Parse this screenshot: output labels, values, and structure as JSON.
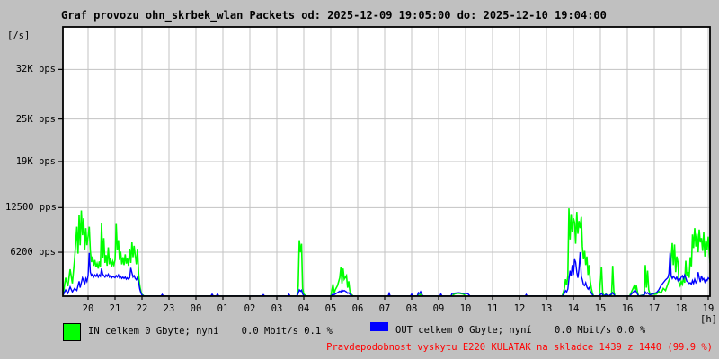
{
  "title": "Graf provozu ohn_skrbek_wlan Packets od: 2025-12-09 19:05:00 do: 2025-12-10 19:04:00",
  "unit_label": "[/s]",
  "hour_unit_label": "[h]",
  "colors": {
    "background": "#c0c0c0",
    "plot_background": "#ffffff",
    "grid": "#c3c3c3",
    "frame": "#000000",
    "in_series": "#00ff00",
    "out_series": "#0000ff",
    "warning_text": "#ff0000",
    "text": "#000000"
  },
  "legend": {
    "in_label": "IN celkem 0 Gbyte; nyní    0.0 Mbit/s 0.1 %",
    "out_label": "OUT celkem 0 Gbyte; nyní    0.0 Mbit/s 0.0 %"
  },
  "warning_text": "Pravdepodobnost vyskytu E220 KULATAK na skladce 1439 z 1440 (99.9 %)",
  "y_axis": {
    "unit": "packets per second",
    "ticks": [
      {
        "value": 32000,
        "label": "32K pps"
      },
      {
        "value": 25000,
        "label": "25K pps"
      },
      {
        "value": 19000,
        "label": "19K pps"
      },
      {
        "value": 12500,
        "label": "12500 pps"
      },
      {
        "value": 6200,
        "label": "6200 pps"
      }
    ]
  },
  "x_axis": {
    "unit": "hour of day",
    "hours": [
      "20",
      "21",
      "22",
      "23",
      "00",
      "01",
      "02",
      "03",
      "04",
      "05",
      "06",
      "07",
      "08",
      "09",
      "10",
      "11",
      "12",
      "13",
      "14",
      "15",
      "16",
      "17",
      "18",
      "19"
    ]
  },
  "chart_data": {
    "type": "line",
    "title": "Graf provozu ohn_skrbek_wlan Packets od: 2025-12-09 19:05:00 do: 2025-12-10 19:04:00",
    "xlabel": "[h]",
    "ylabel": "[/s]",
    "x_range_hours": [
      19.083,
      43.067
    ],
    "ylim": [
      0,
      38000
    ],
    "grid": true,
    "legend_position": "bottom",
    "series_names": [
      "IN",
      "OUT"
    ],
    "series_colors": [
      "#00ff00",
      "#0000ff"
    ],
    "points_format": "[hour_decimal (24+ = next day), IN_pps, OUT_pps]",
    "points": [
      [
        19.083,
        400,
        200
      ],
      [
        19.167,
        2600,
        900
      ],
      [
        19.25,
        1400,
        400
      ],
      [
        19.333,
        3800,
        1300
      ],
      [
        19.417,
        1800,
        600
      ],
      [
        19.5,
        5200,
        1100
      ],
      [
        19.583,
        9800,
        800
      ],
      [
        19.625,
        6000,
        1500
      ],
      [
        19.667,
        11400,
        2100
      ],
      [
        19.708,
        7200,
        1200
      ],
      [
        19.75,
        12100,
        1900
      ],
      [
        19.792,
        8600,
        2600
      ],
      [
        19.833,
        11000,
        2200
      ],
      [
        19.875,
        6600,
        1700
      ],
      [
        19.917,
        9600,
        2500
      ],
      [
        19.958,
        7200,
        2100
      ],
      [
        20.0,
        8400,
        2900
      ],
      [
        20.042,
        9800,
        6100
      ],
      [
        20.083,
        6400,
        3400
      ],
      [
        20.125,
        4800,
        2900
      ],
      [
        20.167,
        5600,
        3100
      ],
      [
        20.208,
        4300,
        2700
      ],
      [
        20.25,
        5100,
        3000
      ],
      [
        20.292,
        4100,
        2800
      ],
      [
        20.333,
        4600,
        3100
      ],
      [
        20.375,
        3900,
        2700
      ],
      [
        20.417,
        4900,
        3000
      ],
      [
        20.458,
        4200,
        2800
      ],
      [
        20.5,
        10300,
        3900
      ],
      [
        20.542,
        5400,
        3100
      ],
      [
        20.583,
        8200,
        2900
      ],
      [
        20.625,
        4700,
        2700
      ],
      [
        20.667,
        5800,
        3000
      ],
      [
        20.708,
        4300,
        2800
      ],
      [
        20.75,
        6900,
        3100
      ],
      [
        20.792,
        4500,
        2700
      ],
      [
        20.833,
        5300,
        2900
      ],
      [
        20.875,
        4200,
        2600
      ],
      [
        20.917,
        4900,
        2800
      ],
      [
        20.958,
        4400,
        2700
      ],
      [
        21.0,
        5100,
        2600
      ],
      [
        21.042,
        10200,
        2900
      ],
      [
        21.083,
        6500,
        2700
      ],
      [
        21.125,
        7900,
        3000
      ],
      [
        21.167,
        5100,
        2600
      ],
      [
        21.208,
        6300,
        2800
      ],
      [
        21.25,
        4500,
        2500
      ],
      [
        21.292,
        5500,
        2700
      ],
      [
        21.333,
        4400,
        2500
      ],
      [
        21.375,
        5900,
        2700
      ],
      [
        21.417,
        4600,
        2400
      ],
      [
        21.458,
        5300,
        2600
      ],
      [
        21.5,
        4300,
        2400
      ],
      [
        21.542,
        6700,
        2600
      ],
      [
        21.583,
        4700,
        4000
      ],
      [
        21.625,
        7600,
        3300
      ],
      [
        21.667,
        5500,
        2700
      ],
      [
        21.708,
        7100,
        2900
      ],
      [
        21.75,
        5700,
        2500
      ],
      [
        21.792,
        4500,
        2300
      ],
      [
        21.833,
        6700,
        2700
      ],
      [
        21.875,
        3100,
        1900
      ],
      [
        21.917,
        1500,
        1000
      ],
      [
        21.958,
        700,
        500
      ],
      [
        22.0,
        250,
        150
      ],
      [
        22.083,
        0,
        0
      ],
      [
        22.7,
        0,
        0
      ],
      [
        22.75,
        100,
        250
      ],
      [
        22.8,
        0,
        0
      ],
      [
        23.5,
        0,
        0
      ],
      [
        24.55,
        0,
        0
      ],
      [
        24.6,
        0,
        280
      ],
      [
        24.65,
        0,
        0
      ],
      [
        24.75,
        0,
        0
      ],
      [
        24.8,
        100,
        300
      ],
      [
        24.85,
        0,
        0
      ],
      [
        25.5,
        0,
        0
      ],
      [
        26.45,
        0,
        0
      ],
      [
        26.5,
        0,
        220
      ],
      [
        26.55,
        0,
        0
      ],
      [
        27.4,
        0,
        0
      ],
      [
        27.45,
        0,
        260
      ],
      [
        27.5,
        0,
        0
      ],
      [
        27.75,
        0,
        0
      ],
      [
        27.792,
        1400,
        400
      ],
      [
        27.833,
        7900,
        900
      ],
      [
        27.875,
        6200,
        700
      ],
      [
        27.917,
        7400,
        850
      ],
      [
        27.958,
        1100,
        300
      ],
      [
        28.0,
        300,
        100
      ],
      [
        28.083,
        0,
        0
      ],
      [
        28.6,
        0,
        0
      ],
      [
        29.0,
        0,
        0
      ],
      [
        29.083,
        1700,
        300
      ],
      [
        29.125,
        400,
        200
      ],
      [
        29.167,
        900,
        300
      ],
      [
        29.25,
        1500,
        500
      ],
      [
        29.333,
        2600,
        700
      ],
      [
        29.375,
        4100,
        600
      ],
      [
        29.417,
        1800,
        900
      ],
      [
        29.458,
        3900,
        700
      ],
      [
        29.5,
        2400,
        800
      ],
      [
        29.583,
        2900,
        600
      ],
      [
        29.625,
        1200,
        400
      ],
      [
        29.667,
        2100,
        500
      ],
      [
        29.708,
        800,
        300
      ],
      [
        29.75,
        300,
        150
      ],
      [
        29.833,
        0,
        0
      ],
      [
        30.5,
        0,
        0
      ],
      [
        31.125,
        0,
        0
      ],
      [
        31.167,
        100,
        420
      ],
      [
        31.208,
        0,
        0
      ],
      [
        31.958,
        0,
        0
      ],
      [
        32.0,
        0,
        300
      ],
      [
        32.042,
        0,
        0
      ],
      [
        32.208,
        0,
        0
      ],
      [
        32.25,
        200,
        500
      ],
      [
        32.292,
        0,
        350
      ],
      [
        32.333,
        250,
        650
      ],
      [
        32.375,
        0,
        300
      ],
      [
        32.417,
        0,
        0
      ],
      [
        33.042,
        0,
        0
      ],
      [
        33.083,
        0,
        320
      ],
      [
        33.125,
        0,
        0
      ],
      [
        33.458,
        0,
        0
      ],
      [
        33.5,
        0,
        380
      ],
      [
        33.583,
        300,
        420
      ],
      [
        33.667,
        380,
        450
      ],
      [
        33.75,
        420,
        480
      ],
      [
        33.833,
        350,
        430
      ],
      [
        33.917,
        300,
        400
      ],
      [
        34.0,
        0,
        380
      ],
      [
        34.083,
        0,
        350
      ],
      [
        34.167,
        0,
        0
      ],
      [
        35.0,
        0,
        0
      ],
      [
        36.208,
        0,
        0
      ],
      [
        36.25,
        0,
        240
      ],
      [
        36.292,
        0,
        0
      ],
      [
        37.0,
        0,
        0
      ],
      [
        37.583,
        0,
        0
      ],
      [
        37.667,
        1100,
        400
      ],
      [
        37.708,
        2400,
        800
      ],
      [
        37.75,
        1600,
        600
      ],
      [
        37.792,
        2800,
        1000
      ],
      [
        37.833,
        12400,
        2400
      ],
      [
        37.875,
        8000,
        3600
      ],
      [
        37.917,
        11600,
        2800
      ],
      [
        37.958,
        9000,
        4400
      ],
      [
        38.0,
        11000,
        3000
      ],
      [
        38.042,
        10400,
        5200
      ],
      [
        38.083,
        7400,
        4800
      ],
      [
        38.125,
        11900,
        3400
      ],
      [
        38.167,
        8800,
        2600
      ],
      [
        38.208,
        10600,
        3800
      ],
      [
        38.25,
        9600,
        6200
      ],
      [
        38.292,
        11200,
        2800
      ],
      [
        38.333,
        7000,
        2300
      ],
      [
        38.375,
        5200,
        1600
      ],
      [
        38.417,
        6400,
        1500
      ],
      [
        38.458,
        4400,
        1900
      ],
      [
        38.5,
        5600,
        1300
      ],
      [
        38.542,
        3000,
        1000
      ],
      [
        38.583,
        4400,
        1200
      ],
      [
        38.625,
        2100,
        700
      ],
      [
        38.667,
        1100,
        400
      ],
      [
        38.708,
        400,
        200
      ],
      [
        38.75,
        0,
        0
      ],
      [
        38.958,
        0,
        0
      ],
      [
        39.042,
        4100,
        400
      ],
      [
        39.083,
        600,
        200
      ],
      [
        39.125,
        0,
        0
      ],
      [
        39.208,
        300,
        250
      ],
      [
        39.292,
        0,
        0
      ],
      [
        39.417,
        200,
        300
      ],
      [
        39.458,
        4300,
        500
      ],
      [
        39.5,
        700,
        250
      ],
      [
        39.542,
        0,
        0
      ],
      [
        40.083,
        0,
        0
      ],
      [
        40.25,
        1400,
        700
      ],
      [
        40.292,
        800,
        850
      ],
      [
        40.333,
        1500,
        600
      ],
      [
        40.375,
        600,
        300
      ],
      [
        40.417,
        0,
        0
      ],
      [
        40.625,
        200,
        150
      ],
      [
        40.667,
        4400,
        600
      ],
      [
        40.708,
        1200,
        350
      ],
      [
        40.75,
        3600,
        500
      ],
      [
        40.792,
        900,
        300
      ],
      [
        40.833,
        400,
        200
      ],
      [
        40.917,
        300,
        250
      ],
      [
        41.0,
        250,
        400
      ],
      [
        41.083,
        300,
        500
      ],
      [
        41.167,
        700,
        900
      ],
      [
        41.25,
        400,
        1500
      ],
      [
        41.333,
        1100,
        1900
      ],
      [
        41.417,
        800,
        2300
      ],
      [
        41.5,
        1700,
        2600
      ],
      [
        41.542,
        2200,
        3200
      ],
      [
        41.583,
        2600,
        6100
      ],
      [
        41.625,
        5200,
        2900
      ],
      [
        41.667,
        7500,
        2500
      ],
      [
        41.708,
        4400,
        2800
      ],
      [
        41.75,
        7300,
        2600
      ],
      [
        41.792,
        3400,
        2400
      ],
      [
        41.833,
        5600,
        2700
      ],
      [
        41.875,
        4800,
        2200
      ],
      [
        41.917,
        1900,
        2500
      ],
      [
        41.958,
        1500,
        2300
      ],
      [
        42.0,
        2100,
        2700
      ],
      [
        42.042,
        1700,
        2900
      ],
      [
        42.083,
        2600,
        2500
      ],
      [
        42.125,
        1900,
        3000
      ],
      [
        42.167,
        5000,
        2600
      ],
      [
        42.208,
        2800,
        2100
      ],
      [
        42.25,
        3400,
        2000
      ],
      [
        42.292,
        2600,
        1800
      ],
      [
        42.333,
        5500,
        1900
      ],
      [
        42.375,
        4200,
        1700
      ],
      [
        42.417,
        8700,
        2200
      ],
      [
        42.458,
        6800,
        1800
      ],
      [
        42.5,
        9600,
        2400
      ],
      [
        42.542,
        7000,
        1900
      ],
      [
        42.583,
        8800,
        2100
      ],
      [
        42.625,
        6200,
        3400
      ],
      [
        42.667,
        9400,
        2600
      ],
      [
        42.708,
        7600,
        2000
      ],
      [
        42.75,
        8200,
        2900
      ],
      [
        42.792,
        6400,
        2300
      ],
      [
        42.833,
        9000,
        2500
      ],
      [
        42.875,
        5600,
        2000
      ],
      [
        42.917,
        7800,
        2400
      ],
      [
        42.958,
        6600,
        2200
      ],
      [
        43.0,
        8400,
        2600
      ],
      [
        43.067,
        4700,
        2300
      ]
    ]
  }
}
